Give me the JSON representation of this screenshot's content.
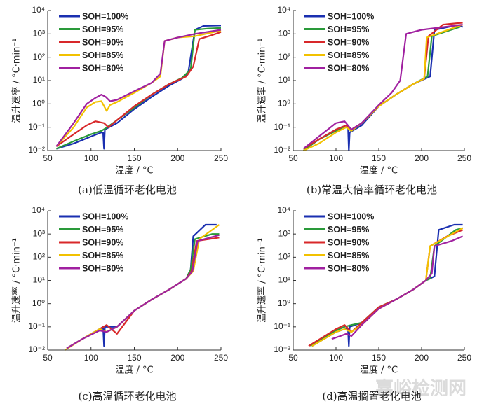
{
  "watermark": "嘉峪检测网",
  "chart_data": [
    {
      "type": "line",
      "caption": "(a)低温循环老化电池",
      "x_label": "温度 / °C",
      "y_label": "温升速率 / °C·min⁻¹",
      "xlim": [
        50,
        250
      ],
      "ylim": [
        0.01,
        10000
      ],
      "yscale": "log",
      "legend": "upper left",
      "xticks": [
        50,
        100,
        150,
        200,
        250
      ],
      "yticks": [
        {
          "value": 0.01,
          "label": "10⁻²"
        },
        {
          "value": 0.1,
          "label": "10⁻¹"
        },
        {
          "value": 1,
          "label": "10⁰"
        },
        {
          "value": 10,
          "label": "10¹"
        },
        {
          "value": 100,
          "label": "10²"
        },
        {
          "value": 1000,
          "label": "10³"
        },
        {
          "value": 10000,
          "label": "10⁴"
        }
      ],
      "series": [
        {
          "name": "SOH=100%",
          "color": "#1a2fb0",
          "x": [
            60,
            80,
            100,
            112,
            114,
            115,
            116,
            130,
            150,
            170,
            190,
            205,
            212,
            220,
            230,
            250
          ],
          "values": [
            0.012,
            0.02,
            0.04,
            0.06,
            0.06,
            0.012,
            0.08,
            0.15,
            0.6,
            2,
            6,
            12,
            20,
            1500,
            2200,
            2300
          ]
        },
        {
          "name": "SOH=95%",
          "color": "#2a9a3a",
          "x": [
            60,
            80,
            100,
            112,
            117,
            130,
            150,
            170,
            190,
            205,
            215,
            220,
            235,
            250
          ],
          "values": [
            0.012,
            0.025,
            0.05,
            0.07,
            0.09,
            0.2,
            0.7,
            2.5,
            7,
            13,
            30,
            1500,
            1700,
            1800
          ]
        },
        {
          "name": "SOH=90%",
          "color": "#d8282a",
          "x": [
            60,
            80,
            95,
            105,
            115,
            120,
            130,
            150,
            170,
            190,
            210,
            218,
            225,
            240,
            250
          ],
          "values": [
            0.015,
            0.05,
            0.12,
            0.18,
            0.15,
            0.1,
            0.2,
            0.8,
            2.5,
            7,
            15,
            40,
            600,
            900,
            1200
          ]
        },
        {
          "name": "SOH=85%",
          "color": "#f2c100",
          "x": [
            60,
            80,
            95,
            105,
            112,
            118,
            122,
            130,
            150,
            170,
            180,
            185,
            200,
            220,
            250
          ],
          "values": [
            0.015,
            0.1,
            0.7,
            1.2,
            1.3,
            0.5,
            0.9,
            1.2,
            3,
            8,
            15,
            500,
            700,
            800,
            1400
          ]
        },
        {
          "name": "SOH=80%",
          "color": "#a020a0",
          "x": [
            60,
            80,
            95,
            105,
            112,
            117,
            122,
            130,
            150,
            170,
            180,
            185,
            200,
            220,
            250
          ],
          "values": [
            0.015,
            0.15,
            1,
            1.8,
            2.5,
            2,
            1.3,
            1.5,
            3.5,
            8,
            20,
            500,
            700,
            1000,
            1500
          ]
        }
      ]
    },
    {
      "type": "line",
      "caption": "(b)常温大倍率循环老化电池",
      "x_label": "温度 / °C",
      "y_label": "温升速率 / °C·min⁻¹",
      "xlim": [
        50,
        250
      ],
      "ylim": [
        0.01,
        10000
      ],
      "yscale": "log",
      "legend": "upper left",
      "xticks": [
        50,
        100,
        150,
        200,
        250
      ],
      "yticks": [
        {
          "value": 0.01,
          "label": "10⁻²"
        },
        {
          "value": 0.1,
          "label": "10⁻¹"
        },
        {
          "value": 1,
          "label": "10⁰"
        },
        {
          "value": 10,
          "label": "10¹"
        },
        {
          "value": 100,
          "label": "10²"
        },
        {
          "value": 1000,
          "label": "10³"
        },
        {
          "value": 10000,
          "label": "10⁴"
        }
      ],
      "series": [
        {
          "name": "SOH=100%",
          "color": "#1a2fb0",
          "x": [
            62,
            80,
            100,
            112,
            114,
            115,
            116,
            130,
            150,
            170,
            190,
            210,
            215,
            240,
            248
          ],
          "values": [
            0.01,
            0.03,
            0.08,
            0.12,
            0.12,
            0.01,
            0.06,
            0.12,
            0.8,
            2.5,
            7,
            15,
            1500,
            2300,
            2000
          ]
        },
        {
          "name": "SOH=95%",
          "color": "#2a9a3a",
          "x": [
            62,
            80,
            100,
            112,
            118,
            130,
            150,
            170,
            190,
            207,
            212,
            245
          ],
          "values": [
            0.01,
            0.03,
            0.07,
            0.1,
            0.07,
            0.15,
            0.8,
            2.5,
            7,
            15,
            800,
            2000
          ]
        },
        {
          "name": "SOH=90%",
          "color": "#d8282a",
          "x": [
            62,
            80,
            100,
            112,
            118,
            130,
            150,
            170,
            190,
            203,
            208,
            225,
            248
          ],
          "values": [
            0.012,
            0.03,
            0.08,
            0.12,
            0.08,
            0.15,
            0.8,
            2.5,
            7,
            12,
            800,
            2500,
            3000
          ]
        },
        {
          "name": "SOH=85%",
          "color": "#f2c100",
          "x": [
            62,
            80,
            100,
            112,
            118,
            130,
            150,
            170,
            190,
            203,
            206,
            248
          ],
          "values": [
            0.01,
            0.02,
            0.06,
            0.1,
            0.07,
            0.15,
            0.8,
            2.5,
            7,
            12,
            700,
            2500
          ]
        },
        {
          "name": "SOH=80%",
          "color": "#a020a0",
          "x": [
            62,
            80,
            100,
            110,
            118,
            130,
            150,
            165,
            175,
            182,
            200,
            248
          ],
          "values": [
            0.012,
            0.04,
            0.15,
            0.18,
            0.08,
            0.15,
            0.9,
            3,
            10,
            1000,
            1500,
            2500
          ]
        }
      ]
    },
    {
      "type": "line",
      "caption": "(c)高温循环老化电池",
      "x_label": "温度 / °C",
      "y_label": "温升速率 / °C·min⁻¹",
      "xlim": [
        50,
        250
      ],
      "ylim": [
        0.01,
        10000
      ],
      "yscale": "log",
      "legend": "upper left",
      "xticks": [
        50,
        100,
        150,
        200,
        250
      ],
      "yticks": [
        {
          "value": 0.01,
          "label": "10⁻²"
        },
        {
          "value": 0.1,
          "label": "10⁻¹"
        },
        {
          "value": 1,
          "label": "10⁰"
        },
        {
          "value": 10,
          "label": "10¹"
        },
        {
          "value": 100,
          "label": "10²"
        },
        {
          "value": 1000,
          "label": "10³"
        },
        {
          "value": 10000,
          "label": "10⁴"
        }
      ],
      "series": [
        {
          "name": "SOH=100%",
          "color": "#1a2fb0",
          "x": [
            72,
            90,
            110,
            114,
            115,
            116,
            130,
            150,
            170,
            190,
            210,
            215,
            218,
            232,
            245
          ],
          "values": [
            0.012,
            0.03,
            0.08,
            0.1,
            0.015,
            0.1,
            0.1,
            0.5,
            1.5,
            4,
            12,
            30,
            800,
            2500,
            2500
          ]
        },
        {
          "name": "SOH=95%",
          "color": "#2a9a3a",
          "x": [
            72,
            90,
            110,
            118,
            130,
            150,
            170,
            190,
            210,
            215,
            220,
            240,
            248
          ],
          "values": [
            0.012,
            0.03,
            0.08,
            0.06,
            0.1,
            0.5,
            1.5,
            4,
            12,
            30,
            600,
            1000,
            1000
          ]
        },
        {
          "name": "SOH=90%",
          "color": "#d8282a",
          "x": [
            72,
            90,
            110,
            118,
            130,
            150,
            170,
            190,
            210,
            216,
            222,
            248
          ],
          "values": [
            0.012,
            0.03,
            0.08,
            0.12,
            0.05,
            0.5,
            1.5,
            4,
            12,
            25,
            500,
            700
          ]
        },
        {
          "name": "SOH=85%",
          "color": "#f2c100",
          "x": [
            70,
            90,
            110,
            118,
            130,
            150,
            170,
            190,
            210,
            218,
            225,
            248
          ],
          "values": [
            0.01,
            0.03,
            0.08,
            0.06,
            0.1,
            0.5,
            1.5,
            4,
            12,
            25,
            600,
            2500
          ]
        },
        {
          "name": "SOH=80%",
          "color": "#a020a0",
          "x": [
            72,
            90,
            110,
            118,
            130,
            150,
            170,
            190,
            210,
            217,
            223,
            248
          ],
          "values": [
            0.012,
            0.03,
            0.07,
            0.06,
            0.1,
            0.5,
            1.5,
            4,
            12,
            25,
            500,
            900
          ]
        }
      ]
    },
    {
      "type": "line",
      "caption": "(d)高温搁置老化电池",
      "x_label": "温度 / °C",
      "y_label": "温升速率 / °C·min⁻¹",
      "xlim": [
        50,
        250
      ],
      "ylim": [
        0.01,
        10000
      ],
      "yscale": "log",
      "legend": "upper left",
      "xticks": [
        50,
        100,
        150,
        200,
        250
      ],
      "yticks": [
        {
          "value": 0.01,
          "label": "10⁻²"
        },
        {
          "value": 0.1,
          "label": "10⁻¹"
        },
        {
          "value": 1,
          "label": "10⁰"
        },
        {
          "value": 10,
          "label": "10¹"
        },
        {
          "value": 100,
          "label": "10²"
        },
        {
          "value": 1000,
          "label": "10³"
        },
        {
          "value": 10000,
          "label": "10⁴"
        }
      ],
      "series": [
        {
          "name": "SOH=100%",
          "color": "#1a2fb0",
          "x": [
            72,
            100,
            110,
            114,
            115,
            116,
            130,
            150,
            170,
            190,
            205,
            215,
            220,
            238,
            248
          ],
          "values": [
            0.015,
            0.06,
            0.08,
            0.08,
            0.015,
            0.1,
            0.15,
            0.7,
            1.5,
            4,
            10,
            15,
            1500,
            2500,
            2500
          ]
        },
        {
          "name": "SOH=95%",
          "color": "#2a9a3a",
          "x": [
            70,
            100,
            110,
            118,
            130,
            150,
            170,
            190,
            205,
            210,
            215,
            240,
            248
          ],
          "values": [
            0.015,
            0.07,
            0.1,
            0.12,
            0.15,
            0.7,
            1.5,
            4,
            10,
            12,
            300,
            1500,
            1800
          ]
        },
        {
          "name": "SOH=90%",
          "color": "#d8282a",
          "x": [
            68,
            100,
            110,
            118,
            130,
            150,
            170,
            190,
            205,
            210,
            230,
            248
          ],
          "values": [
            0.015,
            0.08,
            0.12,
            0.06,
            0.15,
            0.7,
            1.5,
            4,
            10,
            300,
            800,
            1500
          ]
        },
        {
          "name": "SOH=85%",
          "color": "#f2c100",
          "x": [
            72,
            100,
            110,
            118,
            130,
            150,
            170,
            190,
            205,
            210,
            248
          ],
          "values": [
            0.015,
            0.06,
            0.08,
            0.06,
            0.12,
            0.6,
            1.5,
            4,
            10,
            300,
            1800
          ]
        },
        {
          "name": "SOH=80%",
          "color": "#a020a0",
          "x": [
            95,
            105,
            112,
            118,
            130,
            150,
            170,
            190,
            205,
            212,
            215,
            235,
            248
          ],
          "values": [
            0.03,
            0.04,
            0.05,
            0.04,
            0.12,
            0.6,
            1.5,
            4,
            10,
            20,
            300,
            500,
            800
          ]
        }
      ]
    }
  ]
}
